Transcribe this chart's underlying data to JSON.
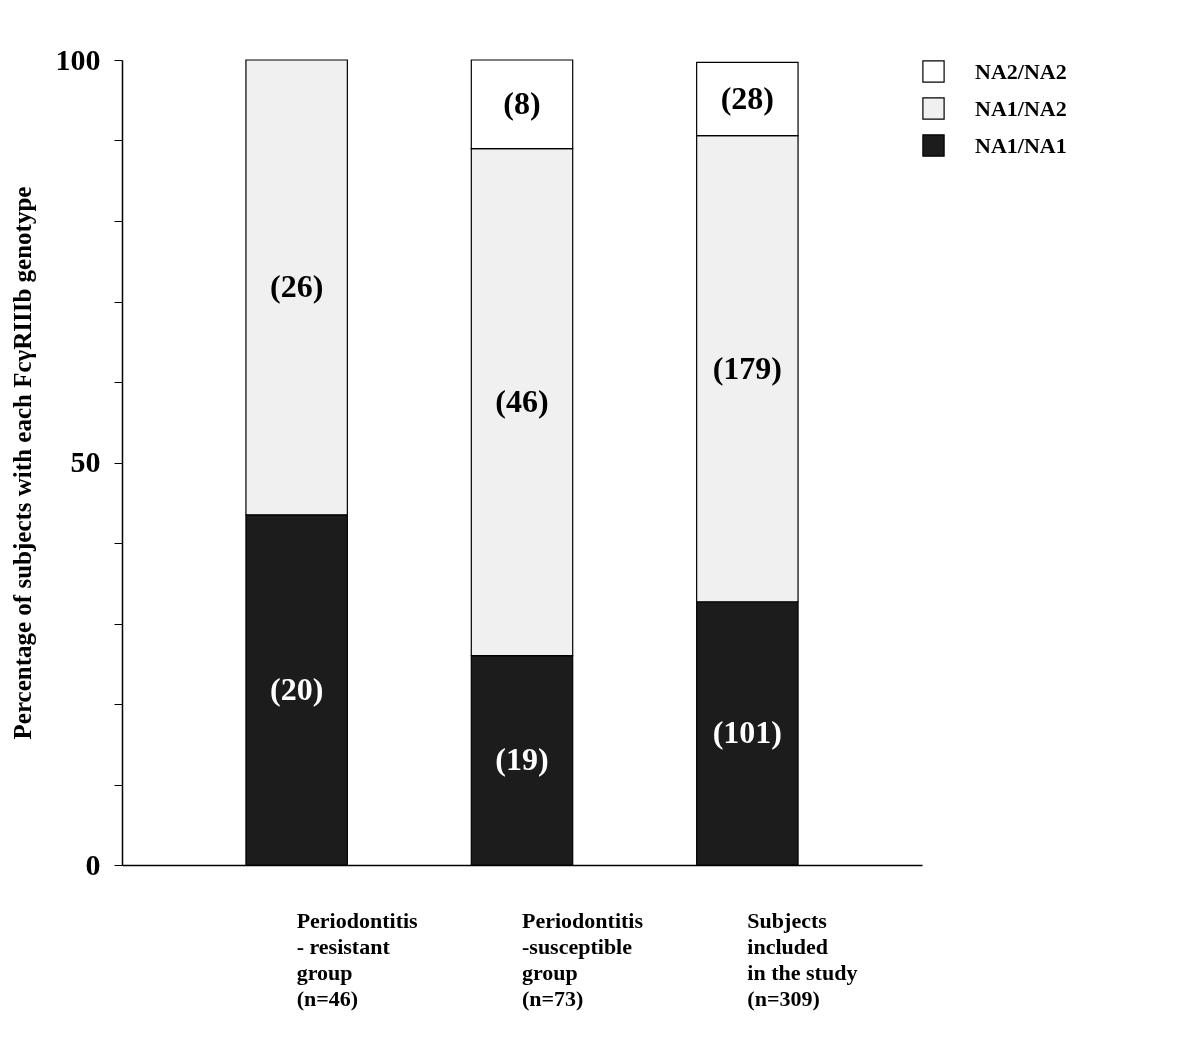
{
  "chart_data": {
    "type": "bar",
    "stacked": true,
    "ylabel": "Percentage of subjects with each FcγRIIIb genotype",
    "categories": [
      "Periodontitis\n- resistant\ngroup\n(n=46)",
      "Periodontitis\n-susceptible\ngroup\n(n=73)",
      "Subjects\nincluded\nin the study\n(n=309)"
    ],
    "series": [
      {
        "name": "NA1/NA1",
        "color": "#1c1c1c",
        "values": [
          43.5,
          26.0,
          32.7
        ]
      },
      {
        "name": "NA1/NA2",
        "color": "#f0f0f0",
        "values": [
          56.5,
          63.0,
          57.9
        ]
      },
      {
        "name": "NA2/NA2",
        "color": "#ffffff",
        "values": [
          0,
          11.0,
          9.1
        ]
      }
    ],
    "annotations": [
      "(20)",
      "(19)",
      "(101)",
      "(26)",
      "(46)",
      "(179)",
      "(8)",
      "(28)"
    ],
    "ylim": [
      0,
      100
    ],
    "yticks": [
      0,
      {
        "value": 10,
        "label": null
      },
      {
        "value": 20,
        "label": null
      },
      {
        "value": 30,
        "label": null
      },
      {
        "value": 40,
        "label": null
      },
      50,
      {
        "value": 60,
        "label": null
      },
      {
        "value": 70,
        "label": null
      },
      {
        "value": 80,
        "label": null
      },
      {
        "value": 90,
        "label": null
      },
      100
    ],
    "grid": false,
    "legend": "right"
  }
}
